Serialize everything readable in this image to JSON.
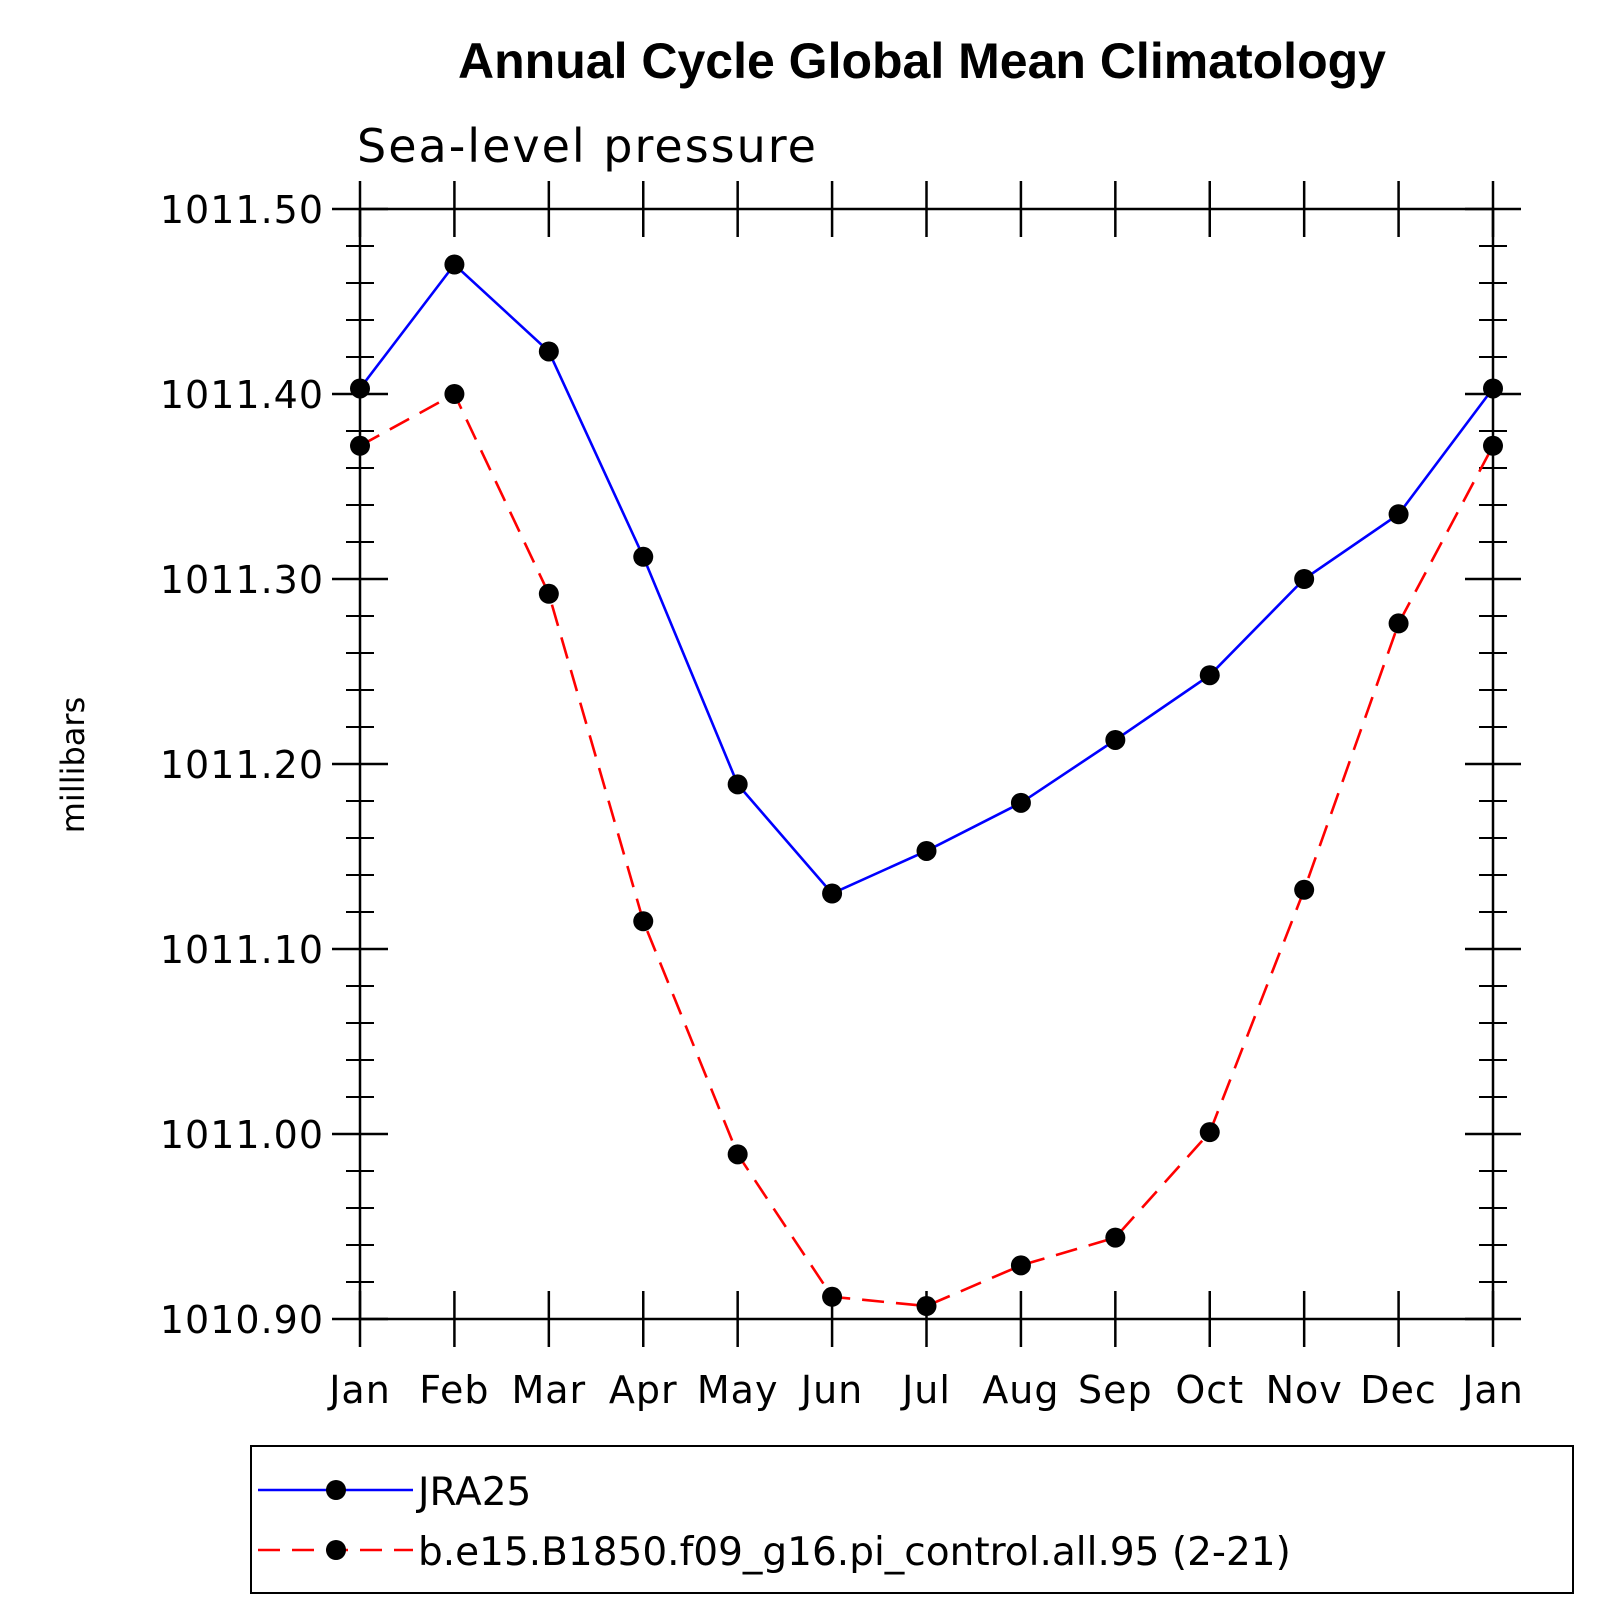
{
  "chart_data": {
    "type": "line",
    "title": "Annual Cycle Global Mean Climatology",
    "subtitle": "Sea-level pressure",
    "xlabel": "",
    "ylabel": "millibars",
    "categories": [
      "Jan",
      "Feb",
      "Mar",
      "Apr",
      "May",
      "Jun",
      "Jul",
      "Aug",
      "Sep",
      "Oct",
      "Nov",
      "Dec",
      "Jan"
    ],
    "ylim": [
      1010.9,
      1011.5
    ],
    "yticks": [
      1010.9,
      1011.0,
      1011.1,
      1011.2,
      1011.3,
      1011.4,
      1011.5
    ],
    "ytick_labels": [
      "1010.90",
      "1011.00",
      "1011.10",
      "1011.20",
      "1011.30",
      "1011.40",
      "1011.50"
    ],
    "series": [
      {
        "name": "JRA25",
        "color": "#0000ff",
        "dash": "solid",
        "values": [
          1011.403,
          1011.47,
          1011.423,
          1011.312,
          1011.189,
          1011.13,
          1011.153,
          1011.179,
          1011.213,
          1011.248,
          1011.3,
          1011.335,
          1011.403
        ]
      },
      {
        "name": "b.e15.B1850.f09_g16.pi_control.all.95 (2-21)",
        "color": "#ff0000",
        "dash": "dashed",
        "values": [
          1011.372,
          1011.4,
          1011.292,
          1011.115,
          1010.989,
          1010.912,
          1010.907,
          1010.929,
          1010.944,
          1011.001,
          1011.132,
          1011.276,
          1011.372
        ]
      }
    ],
    "legend_position": "bottom"
  }
}
